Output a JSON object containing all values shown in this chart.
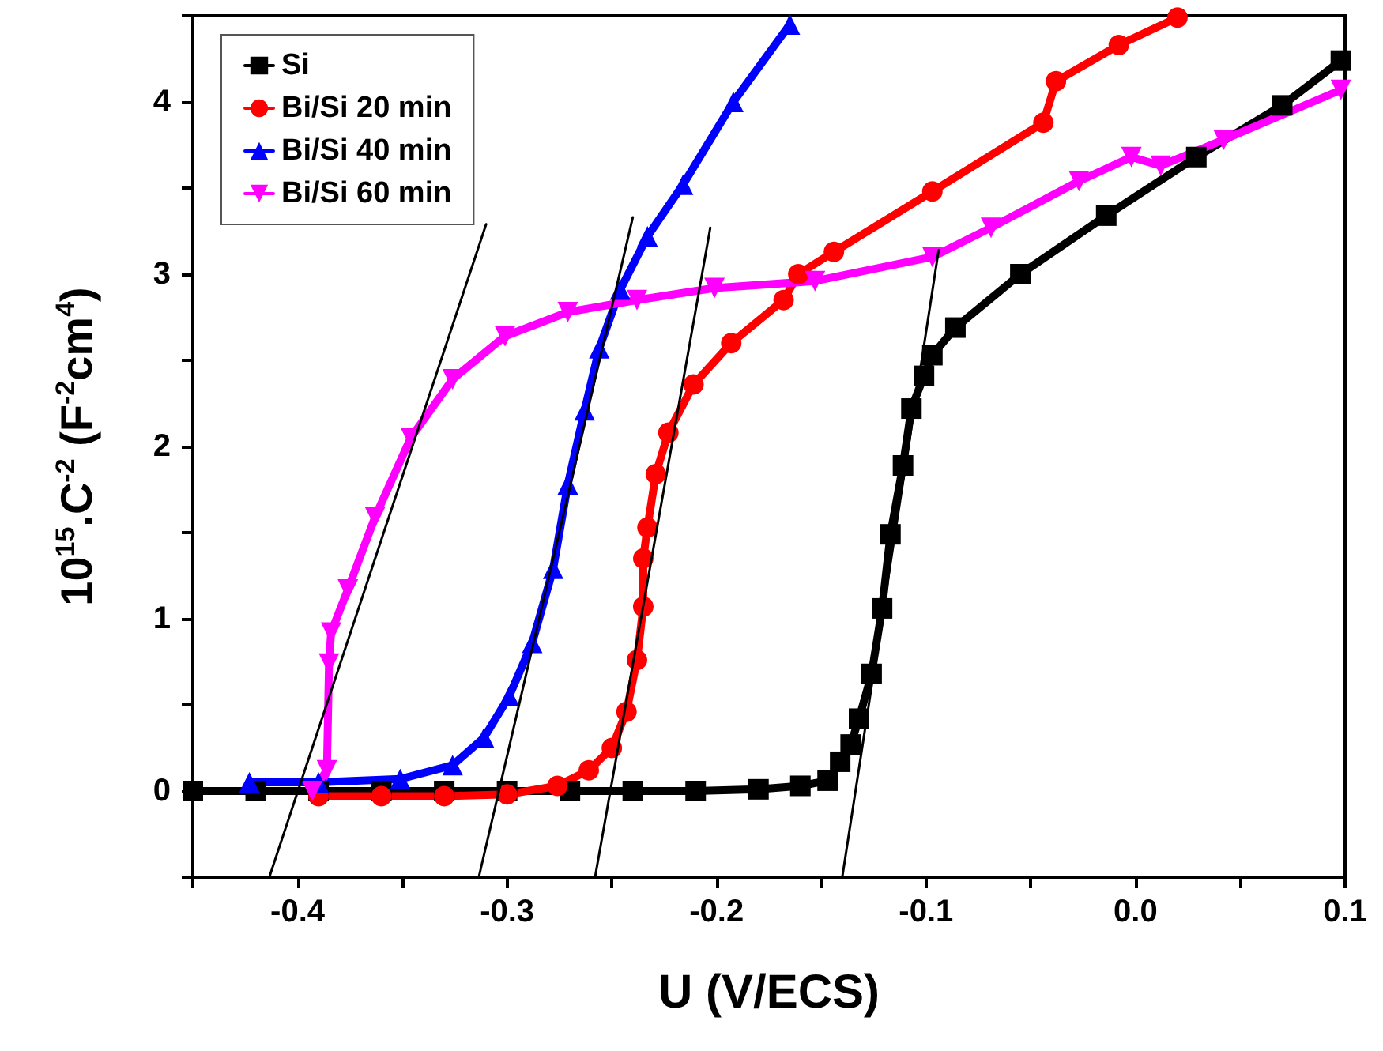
{
  "chart_data": {
    "type": "line",
    "xlabel": "U (V/ECS)",
    "ylabel": "10$^{15}$.C$^{-2}$ (F$^{-2}$cm$^{4}$)",
    "xlim": [
      -0.45,
      0.1
    ],
    "ylim": [
      -0.5,
      4.5
    ],
    "xticks": [
      {
        "value": -0.45,
        "label": null
      },
      -0.4,
      {
        "value": -0.35,
        "label": null
      },
      -0.3,
      {
        "value": -0.25,
        "label": null
      },
      -0.2,
      {
        "value": -0.15,
        "label": null
      },
      -0.1,
      {
        "value": -0.05,
        "label": null
      },
      {
        "value": 0,
        "label": "0.0"
      },
      {
        "value": 0.05,
        "label": null
      },
      0.1
    ],
    "yticks": [
      {
        "value": -0.5,
        "label": null
      },
      0,
      {
        "value": 0.5,
        "label": null
      },
      1,
      {
        "value": 1.5,
        "label": null
      },
      2,
      {
        "value": 2.5,
        "label": null
      },
      3,
      {
        "value": 3.5,
        "label": null
      },
      4,
      {
        "value": 4.5,
        "label": null
      }
    ],
    "grid": false,
    "legend": "top left",
    "series": [
      {
        "name": "Si",
        "color": "#000000",
        "marker": "square",
        "x": [
          -0.45,
          -0.42,
          -0.39,
          -0.36,
          -0.33,
          -0.3,
          -0.27,
          -0.24,
          -0.21,
          -0.18,
          -0.16,
          -0.147,
          -0.141,
          -0.136,
          -0.132,
          -0.126,
          -0.121,
          -0.117,
          -0.111,
          -0.107,
          -0.101,
          -0.097,
          -0.086,
          -0.055,
          -0.014,
          0.029,
          0.07,
          0.098
        ],
        "values": [
          0,
          0,
          0,
          0,
          0,
          0,
          0,
          0,
          0,
          0.01,
          0.03,
          0.06,
          0.17,
          0.27,
          0.42,
          0.68,
          1.06,
          1.49,
          1.89,
          2.22,
          2.41,
          2.53,
          2.69,
          3.0,
          3.34,
          3.68,
          3.98,
          4.24
        ]
      },
      {
        "name": "Bi/Si 20 min",
        "color": "#ff0000",
        "marker": "circle",
        "x": [
          -0.39,
          -0.36,
          -0.33,
          -0.3,
          -0.276,
          -0.261,
          -0.25,
          -0.243,
          -0.238,
          -0.235,
          -0.235,
          -0.233,
          -0.229,
          -0.223,
          -0.211,
          -0.193,
          -0.168,
          -0.161,
          -0.144,
          -0.097,
          -0.044,
          -0.038,
          -0.008,
          0.02
        ],
        "values": [
          -0.03,
          -0.03,
          -0.03,
          -0.02,
          0.03,
          0.12,
          0.25,
          0.46,
          0.76,
          1.07,
          1.35,
          1.53,
          1.84,
          2.08,
          2.36,
          2.6,
          2.85,
          3.0,
          3.13,
          3.48,
          3.88,
          4.12,
          4.33,
          4.49
        ]
      },
      {
        "name": "Bi/Si 40 min",
        "color": "#0000ff",
        "marker": "triangle",
        "x": [
          -0.423,
          -0.39,
          -0.351,
          -0.326,
          -0.311,
          -0.299,
          -0.288,
          -0.278,
          -0.271,
          -0.263,
          -0.256,
          -0.246,
          -0.233,
          -0.216,
          -0.192,
          -0.165
        ],
        "values": [
          0.05,
          0.05,
          0.07,
          0.15,
          0.31,
          0.55,
          0.86,
          1.29,
          1.78,
          2.21,
          2.57,
          2.91,
          3.22,
          3.52,
          4.0,
          4.45
        ]
      },
      {
        "name": "Bi/Si 60 min",
        "color": "#ff00ff",
        "marker": "triangle-down",
        "x": [
          -0.393,
          -0.386,
          -0.385,
          -0.384,
          -0.376,
          -0.363,
          -0.346,
          -0.326,
          -0.301,
          -0.271,
          -0.238,
          -0.201,
          -0.153,
          -0.097,
          -0.069,
          -0.027,
          -0.002,
          0.012,
          0.042,
          0.098
        ],
        "values": [
          0,
          0.12,
          0.74,
          0.92,
          1.17,
          1.59,
          2.05,
          2.39,
          2.64,
          2.78,
          2.85,
          2.92,
          2.96,
          3.1,
          3.27,
          3.54,
          3.68,
          3.63,
          3.78,
          4.07
        ]
      },
      {
        "color": "#000000",
        "marker": "none",
        "x": [
          -0.14,
          -0.094
        ],
        "values": [
          -0.5,
          3.14
        ]
      },
      {
        "color": "#000000",
        "marker": "none",
        "x": [
          -0.258,
          -0.203
        ],
        "values": [
          -0.5,
          3.27
        ]
      },
      {
        "color": "#000000",
        "marker": "none",
        "x": [
          -0.3135,
          -0.24
        ],
        "values": [
          -0.5,
          3.33
        ]
      },
      {
        "color": "#000000",
        "marker": "none",
        "x": [
          -0.4135,
          -0.31
        ],
        "values": [
          -0.5,
          3.29
        ]
      }
    ]
  }
}
